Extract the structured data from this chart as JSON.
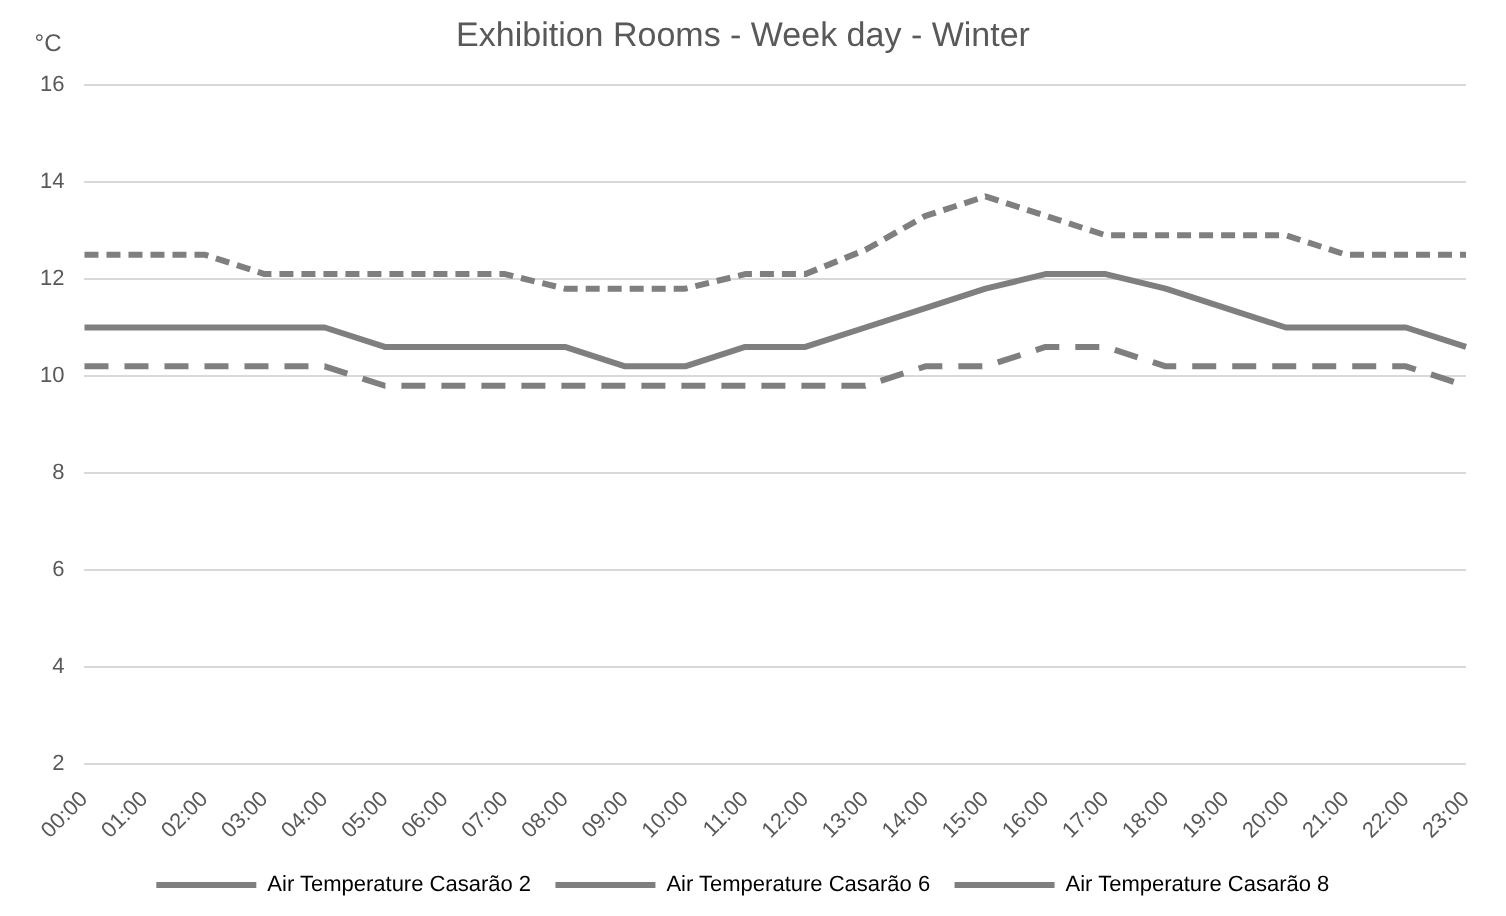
{
  "chart_data": {
    "type": "line",
    "title": "Exhibition Rooms - Week day - Winter",
    "ylabel": "°C",
    "categories": [
      "00:00",
      "01:00",
      "02:00",
      "03:00",
      "04:00",
      "05:00",
      "06:00",
      "07:00",
      "08:00",
      "09:00",
      "10:00",
      "11:00",
      "12:00",
      "13:00",
      "14:00",
      "15:00",
      "16:00",
      "17:00",
      "18:00",
      "19:00",
      "20:00",
      "21:00",
      "22:00",
      "23:00"
    ],
    "series": [
      {
        "name": "Air Temperature Casarão 2",
        "color": "#7f7f7f",
        "line_style": "dotted",
        "values": [
          12.5,
          12.5,
          12.5,
          12.1,
          12.1,
          12.1,
          12.1,
          12.1,
          11.8,
          11.8,
          11.8,
          12.1,
          12.1,
          12.6,
          13.3,
          13.7,
          13.3,
          12.9,
          12.9,
          12.9,
          12.9,
          12.5,
          12.5,
          12.5
        ]
      },
      {
        "name": "Air Temperature Casarão 6",
        "color": "#7f7f7f",
        "line_style": "dashed",
        "values": [
          10.2,
          10.2,
          10.2,
          10.2,
          10.2,
          9.8,
          9.8,
          9.8,
          9.8,
          9.8,
          9.8,
          9.8,
          9.8,
          9.8,
          10.2,
          10.2,
          10.6,
          10.6,
          10.2,
          10.2,
          10.2,
          10.2,
          10.2,
          9.8
        ]
      },
      {
        "name": "Air Temperature Casarão 8",
        "color": "#7f7f7f",
        "line_style": "solid",
        "values": [
          11.0,
          11.0,
          11.0,
          11.0,
          11.0,
          10.6,
          10.6,
          10.6,
          10.6,
          10.2,
          10.2,
          10.6,
          10.6,
          11.0,
          11.4,
          11.8,
          12.1,
          12.1,
          11.8,
          11.4,
          11.0,
          11.0,
          11.0,
          10.6
        ]
      }
    ],
    "ylim": [
      2,
      16
    ],
    "yticks": [
      2,
      4,
      6,
      8,
      10,
      12,
      14,
      16
    ],
    "grid": "y",
    "legend": "bottom",
    "marker": "none"
  }
}
